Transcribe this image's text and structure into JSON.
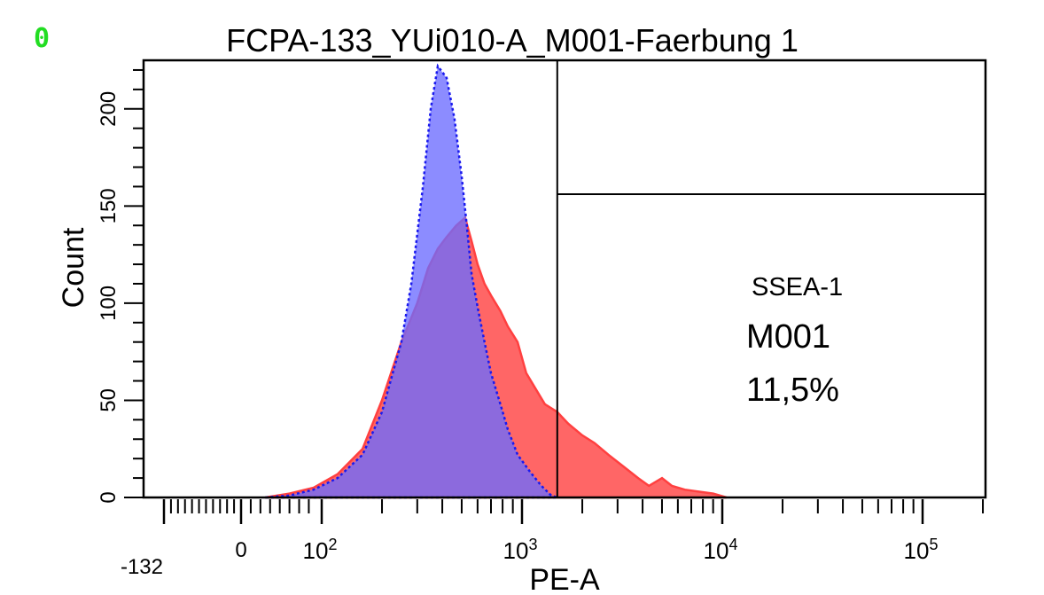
{
  "corner_mark": "0",
  "chart_data": {
    "type": "area",
    "title": "FCPA-133_YUi010-A_M001-Faerbung 1",
    "xlabel": "PE-A",
    "ylabel": "Count",
    "x_scale": "biexponential (log above ~100)",
    "xlim": [
      -132,
      250000
    ],
    "ylim": [
      0,
      225
    ],
    "y_ticks": [
      "0",
      "50",
      "100",
      "150",
      "200"
    ],
    "x_tick_labels": [
      {
        "value": -132,
        "label": "-132"
      },
      {
        "value": 0,
        "label": "0"
      },
      {
        "value": 100,
        "base": "10",
        "exp": "2"
      },
      {
        "value": 1000,
        "base": "10",
        "exp": "3"
      },
      {
        "value": 10000,
        "base": "10",
        "exp": "4"
      },
      {
        "value": 100000,
        "base": "10",
        "exp": "5"
      }
    ],
    "grid": false,
    "series": [
      {
        "color": "#ff4040",
        "fill": "#ff6666",
        "x": [
          30,
          60,
          90,
          120,
          160,
          200,
          250,
          300,
          340,
          380,
          420,
          470,
          520,
          560,
          600,
          650,
          700,
          780,
          850,
          950,
          1050,
          1200,
          1300,
          1500,
          1700,
          2000,
          2300,
          2700,
          3200,
          3800,
          4300,
          5000,
          5600,
          6500,
          7600,
          9000,
          10500
        ],
        "values": [
          0,
          2,
          5,
          12,
          25,
          50,
          80,
          100,
          118,
          128,
          134,
          140,
          144,
          132,
          120,
          110,
          104,
          96,
          88,
          80,
          64,
          54,
          48,
          44,
          38,
          32,
          28,
          22,
          16,
          10,
          6,
          10,
          6,
          4,
          3,
          2,
          0
        ]
      },
      {
        "color": "#1a1aee",
        "fill": "#6b6bff",
        "x": [
          30,
          60,
          90,
          120,
          160,
          200,
          250,
          280,
          320,
          350,
          380,
          420,
          460,
          500,
          530,
          560,
          600,
          650,
          700,
          780,
          850,
          950,
          1100,
          1250,
          1400,
          1500
        ],
        "values": [
          0,
          1,
          4,
          10,
          22,
          44,
          80,
          110,
          160,
          200,
          222,
          216,
          195,
          165,
          140,
          115,
          98,
          80,
          64,
          48,
          35,
          22,
          13,
          6,
          1,
          0
        ]
      }
    ],
    "gates": [
      {
        "name": "M001",
        "x_min": 1500,
        "label_top": "SSEA-1",
        "label_name": "M001",
        "label_value": "11,5%"
      }
    ]
  }
}
